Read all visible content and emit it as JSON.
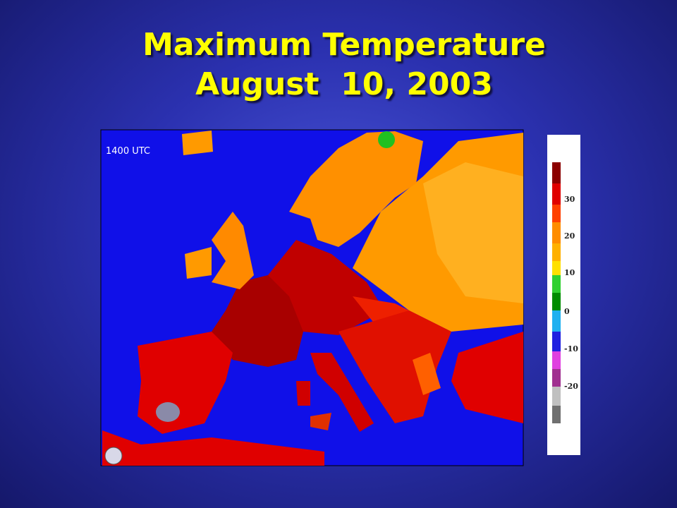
{
  "title": {
    "line1": "Maximum Temperature",
    "line2": "August  10, 2003"
  },
  "map": {
    "timestamp": "1400 UTC"
  },
  "colorbar": {
    "ticks": [
      30,
      20,
      10,
      0,
      -10,
      -20
    ]
  }
}
